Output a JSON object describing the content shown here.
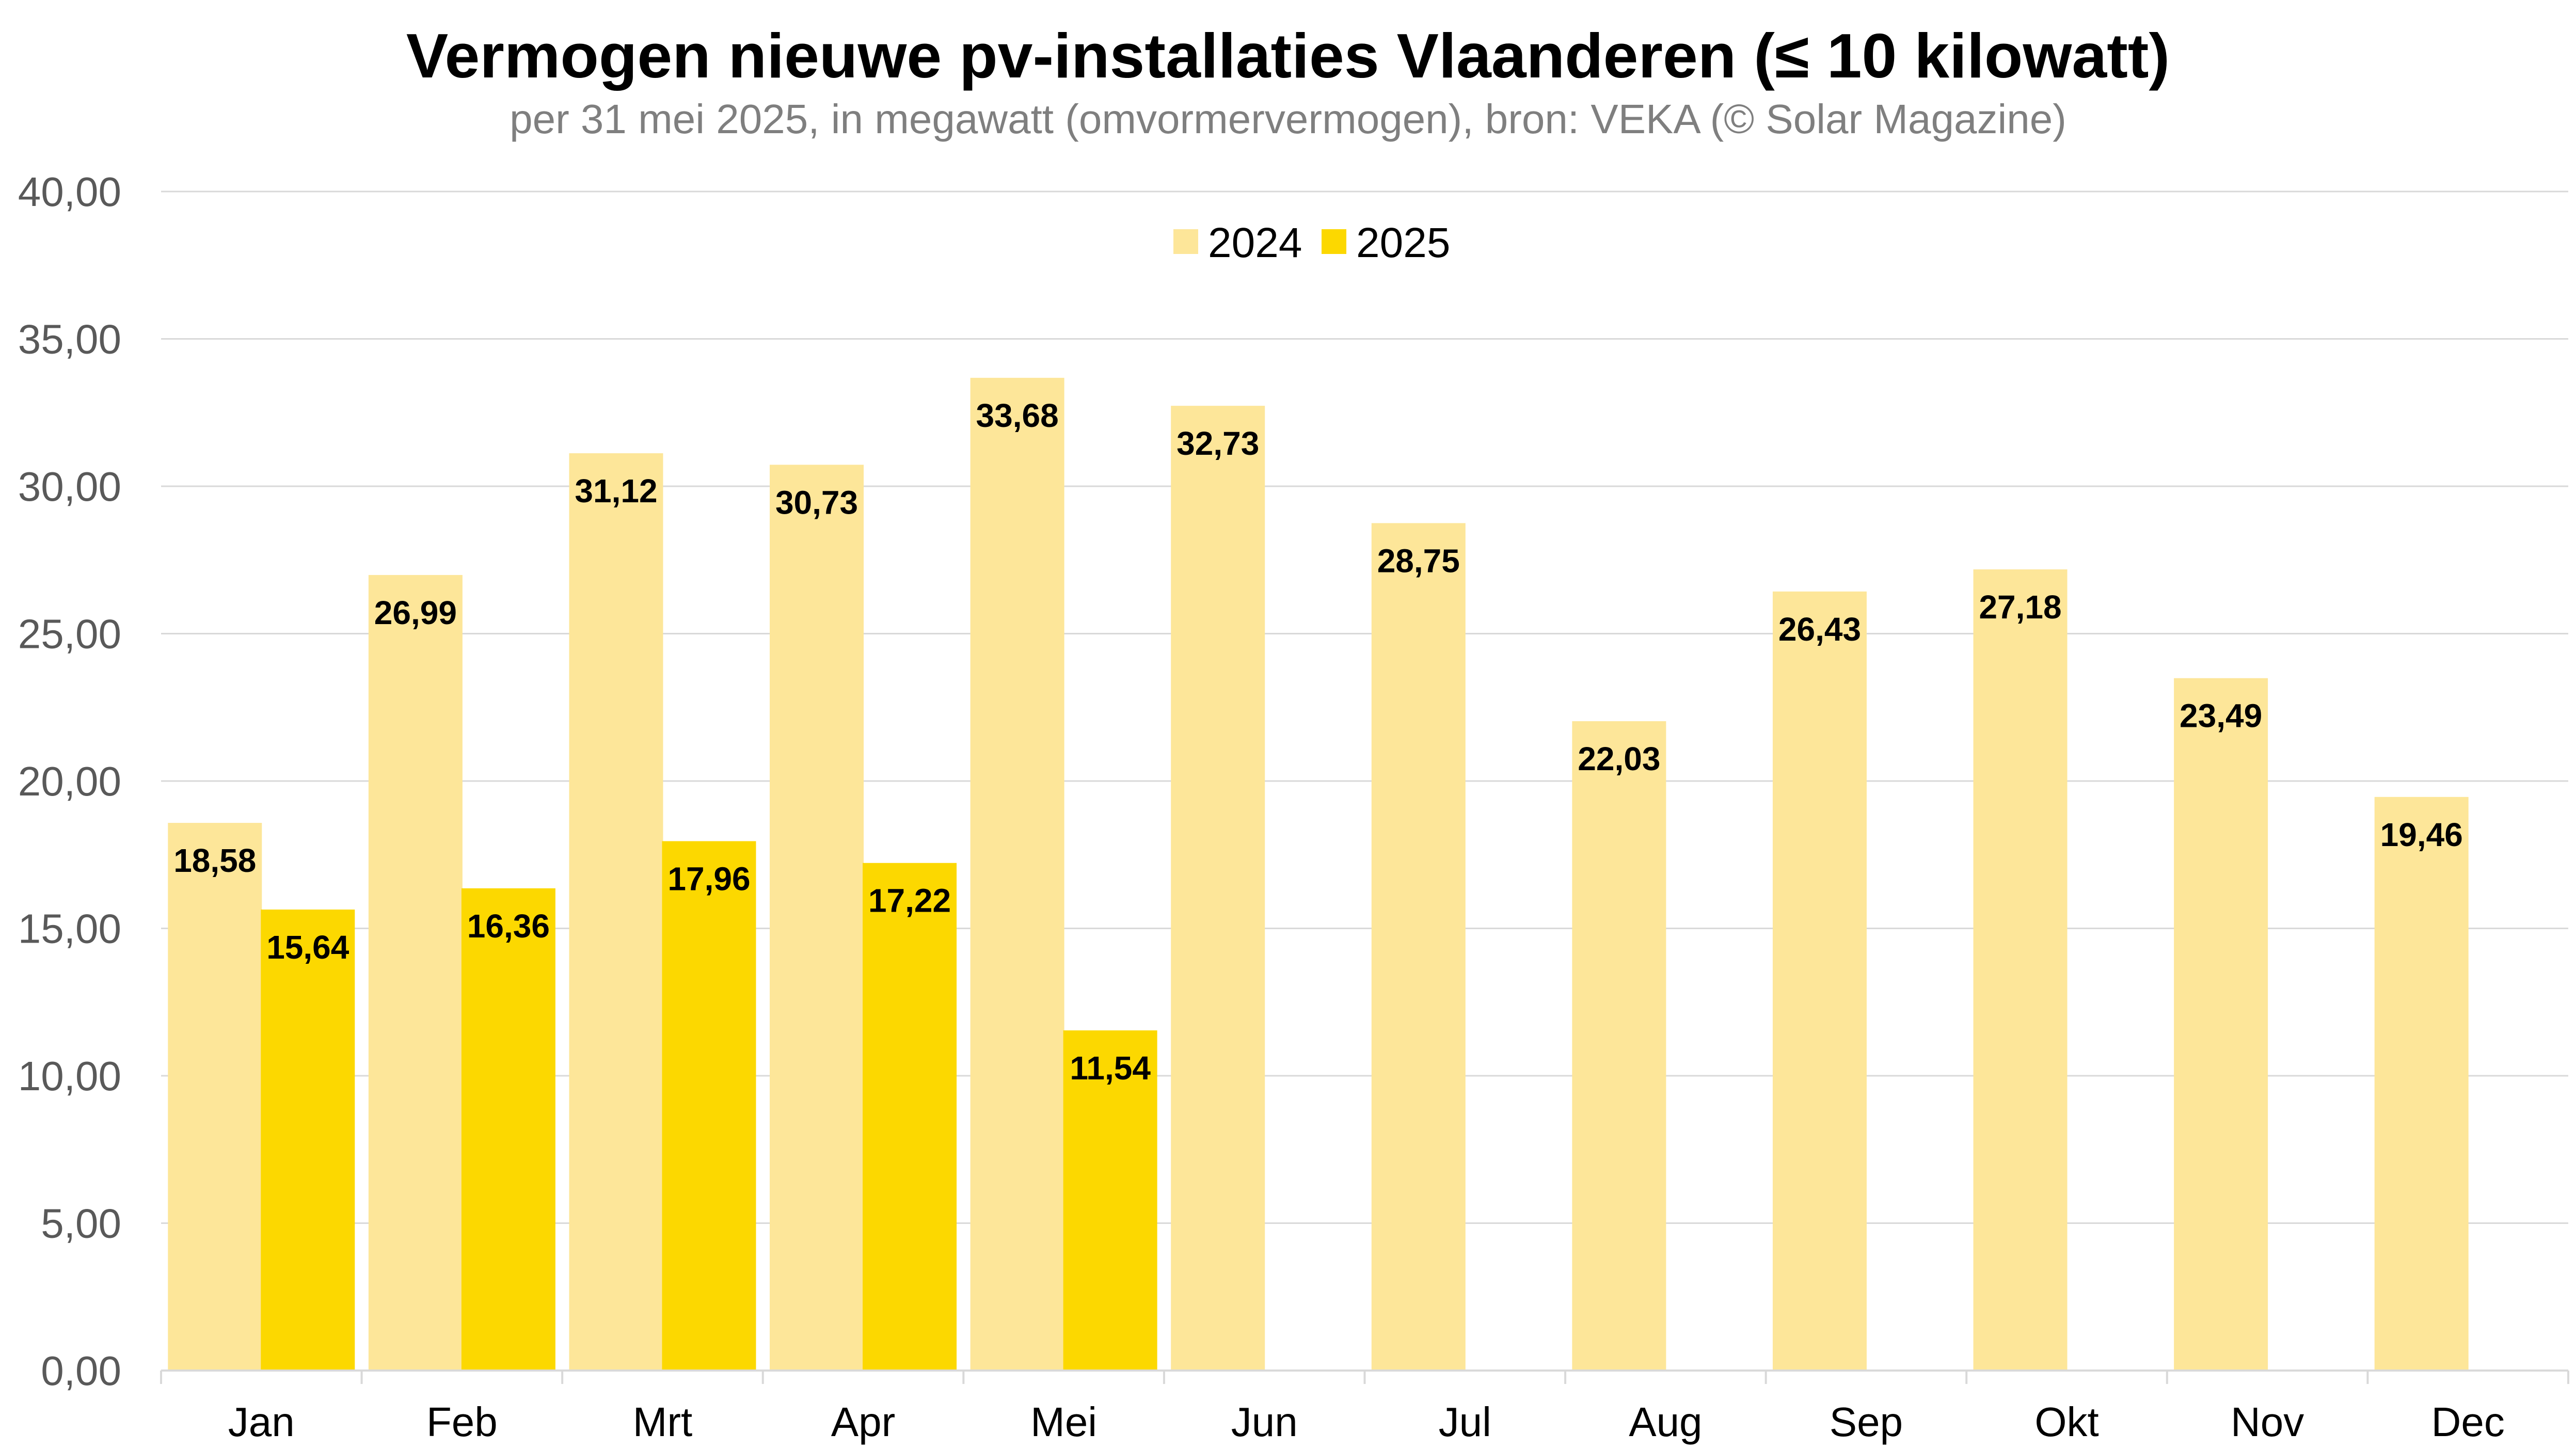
{
  "chart_data": {
    "type": "bar",
    "title": "Vermogen nieuwe pv-installaties Vlaanderen (≤ 10 kilowatt)",
    "subtitle": "per 31 mei 2025, in megawatt (omvormervermogen), bron: VEKA (© Solar Magazine)",
    "categories": [
      "Jan",
      "Feb",
      "Mrt",
      "Apr",
      "Mei",
      "Jun",
      "Jul",
      "Aug",
      "Sep",
      "Okt",
      "Nov",
      "Dec"
    ],
    "series": [
      {
        "name": "2024",
        "color": "#fde699",
        "values": [
          18.58,
          26.99,
          31.12,
          30.73,
          33.68,
          32.73,
          28.75,
          22.03,
          26.43,
          27.18,
          23.49,
          19.46
        ],
        "labels": [
          "18,58",
          "26,99",
          "31,12",
          "30,73",
          "33,68",
          "32,73",
          "28,75",
          "22,03",
          "26,43",
          "27,18",
          "23,49",
          "19,46"
        ]
      },
      {
        "name": "2025",
        "color": "#fcd800",
        "values": [
          15.64,
          16.36,
          17.96,
          17.22,
          11.54,
          null,
          null,
          null,
          null,
          null,
          null,
          null
        ],
        "labels": [
          "15,64",
          "16,36",
          "17,96",
          "17,22",
          "11,54",
          "",
          "",
          "",
          "",
          "",
          "",
          ""
        ]
      }
    ],
    "ylim": [
      0,
      40
    ],
    "yticks": [
      0,
      5,
      10,
      15,
      20,
      25,
      30,
      35,
      40
    ],
    "ytick_labels": [
      "0,00",
      "5,00",
      "10,00",
      "15,00",
      "20,00",
      "25,00",
      "30,00",
      "35,00",
      "40,00"
    ],
    "grid": true,
    "legend_position": "top-center",
    "xlabel": "",
    "ylabel": ""
  }
}
